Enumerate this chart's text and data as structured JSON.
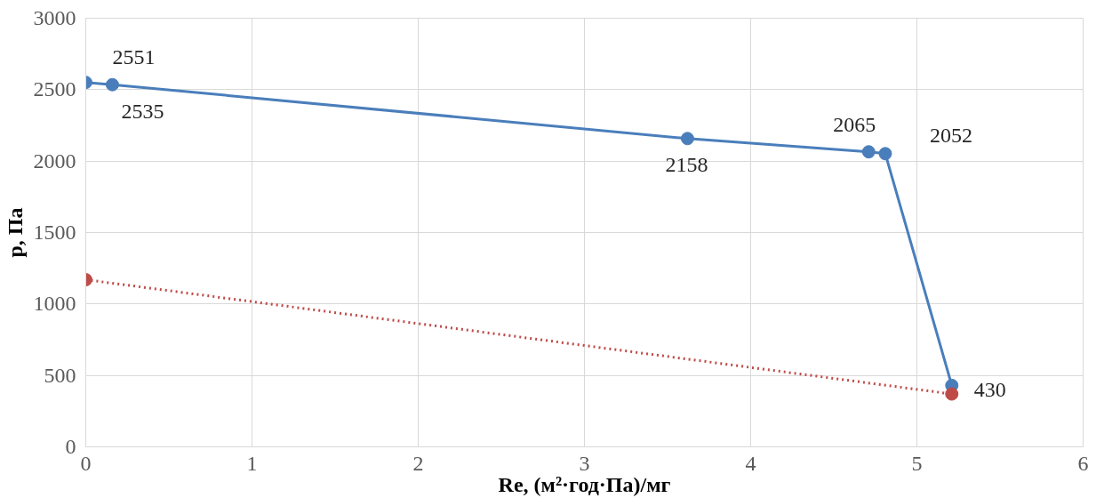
{
  "chart_data": {
    "type": "line",
    "xlabel": "Re, (м²·год·Па)/мг",
    "ylabel": "p, Па",
    "xlim": [
      0,
      6
    ],
    "xticks": [
      0,
      1,
      2,
      3,
      4,
      5,
      6
    ],
    "ylim": [
      0,
      3000
    ],
    "yticks": [
      0,
      500,
      1000,
      1500,
      2000,
      2500,
      3000
    ],
    "grid": true,
    "marker": "circle",
    "series": [
      {
        "color": "#4a7ebb",
        "x": [
          0,
          0.16,
          3.62,
          4.71,
          4.81,
          5.21
        ],
        "values": [
          2551,
          2535,
          2158,
          2065,
          2052,
          430
        ],
        "line_style": "solid",
        "value_labels": [
          "2551",
          "2535",
          "2158",
          "2065",
          "2052",
          "430"
        ]
      },
      {
        "color": "#be4b48",
        "x": [
          0,
          5.21
        ],
        "values": [
          1170,
          370
        ],
        "line_style": "dotted"
      }
    ]
  }
}
